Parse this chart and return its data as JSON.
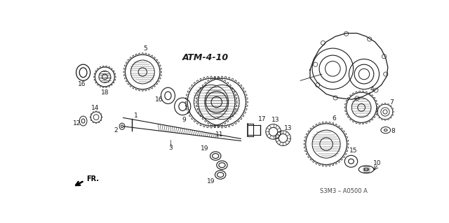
{
  "bg_color": "#ffffff",
  "diagram_label": "ATM-4-10",
  "part_number": "S3M3 – A0500 A",
  "fr_label": "FR.",
  "lc": "#1a1a1a",
  "figsize": [
    6.4,
    3.19
  ],
  "dpi": 100
}
